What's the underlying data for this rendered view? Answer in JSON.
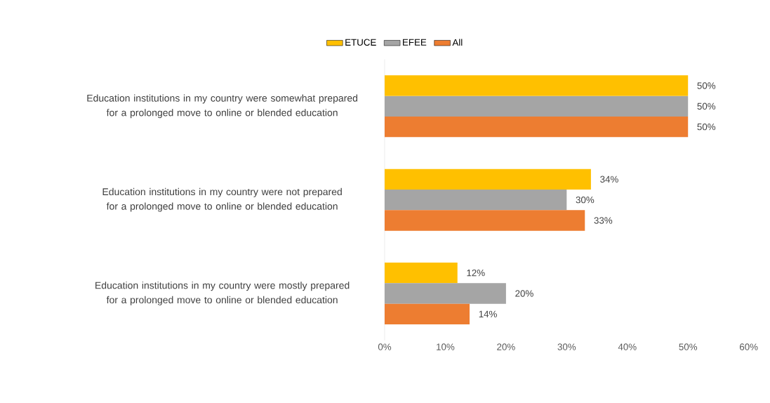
{
  "chart_data": {
    "type": "bar",
    "orientation": "horizontal",
    "categories": [
      "Education institutions in my country were somewhat prepared for a prolonged move to online or blended education",
      "Education institutions in my country were not prepared for a prolonged move to online or blended education",
      "Education institutions in my country were mostly prepared for a prolonged move to online or blended education"
    ],
    "series": [
      {
        "name": "ETUCE",
        "color": "#ffc000",
        "values": [
          50,
          34,
          12
        ],
        "value_labels": [
          "50%",
          "34%",
          "12%"
        ]
      },
      {
        "name": "EFEE",
        "color": "#a5a5a5",
        "values": [
          50,
          30,
          20
        ],
        "value_labels": [
          "50%",
          "30%",
          "20%"
        ]
      },
      {
        "name": "All",
        "color": "#ed7d31",
        "values": [
          50,
          33,
          14
        ],
        "value_labels": [
          "50%",
          "33%",
          "14%"
        ]
      }
    ],
    "xlim": [
      0,
      60
    ],
    "xticks": [
      {
        "value": 0,
        "label": "0%"
      },
      {
        "value": 10,
        "label": "10%"
      },
      {
        "value": 20,
        "label": "20%"
      },
      {
        "value": 30,
        "label": "30%"
      },
      {
        "value": 40,
        "label": "40%"
      },
      {
        "value": 50,
        "label": "50%"
      },
      {
        "value": 60,
        "label": "60%"
      }
    ],
    "grid": false,
    "legend": "top"
  }
}
